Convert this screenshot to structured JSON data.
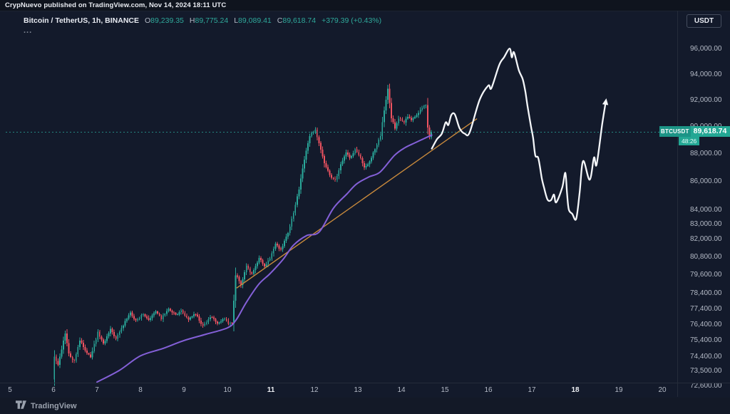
{
  "attribution": {
    "text": "CrypNuevo published on TradingView.com, Nov 14, 2024 18:11 UTC"
  },
  "legend": {
    "symbol": "Bitcoin / TetherUS, 1h, BINANCE",
    "ohlc": [
      {
        "key": "O",
        "value": "89,239.35"
      },
      {
        "key": "H",
        "value": "89,775.24"
      },
      {
        "key": "L",
        "value": "89,089.41"
      },
      {
        "key": "C",
        "value": "89,618.74"
      }
    ],
    "change": "+379.39 (+0.43%)",
    "more": "..."
  },
  "currency_button": {
    "label": "USDT"
  },
  "price_label": {
    "symbol_badge": "BTCUSDT",
    "price": "89,618.74",
    "countdown": "48:26"
  },
  "footer": {
    "brand": "TradingView"
  },
  "colors": {
    "background": "#131a2b",
    "up": "#2aa99b",
    "down": "#ef5360",
    "ma": "#8460d8",
    "trendline": "#c98a3c",
    "projection": "#f4f6f9",
    "current_price_line": "#2aa99b",
    "label_bg": "#23a794",
    "axis_text": "#b4bac6"
  },
  "chart_data": {
    "type": "candlestick",
    "symbol": "BTCUSDT",
    "description": "Bitcoin / TetherUS",
    "timeframe": "1h",
    "exchange": "BINANCE",
    "scale": "log",
    "last_candle": {
      "open": 89239.35,
      "high": 89775.24,
      "low": 89089.41,
      "close": 89618.74,
      "change": 379.39,
      "change_pct": 0.43
    },
    "current_price": 89618.74,
    "countdown": "48:26",
    "x_axis": {
      "unit": "day of month (Nov 2024)",
      "ticks": [
        "5",
        "6",
        "7",
        "8",
        "9",
        "10",
        "11",
        "12",
        "13",
        "14",
        "15",
        "16",
        "17",
        "18",
        "19",
        "20"
      ],
      "bold_ticks": [
        "11",
        "18"
      ]
    },
    "y_axis": {
      "visible_range": [
        72100,
        96900
      ],
      "ticks": [
        {
          "price": 96000,
          "label": "96,000.00"
        },
        {
          "price": 94000,
          "label": "94,000.00"
        },
        {
          "price": 92000,
          "label": "92,000.00"
        },
        {
          "price": 90000,
          "label": "90,000.00"
        },
        {
          "price": 88000,
          "label": "88,000.00"
        },
        {
          "price": 86000,
          "label": "86,000.00"
        },
        {
          "price": 84000,
          "label": "84,000.00"
        },
        {
          "price": 83000,
          "label": "83,000.00"
        },
        {
          "price": 82000,
          "label": "82,000.00"
        },
        {
          "price": 80800,
          "label": "80,800.00"
        },
        {
          "price": 79600,
          "label": "79,600.00"
        },
        {
          "price": 78400,
          "label": "78,400.00"
        },
        {
          "price": 77400,
          "label": "77,400.00"
        },
        {
          "price": 76400,
          "label": "76,400.00"
        },
        {
          "price": 75400,
          "label": "75,400.00"
        },
        {
          "price": 74400,
          "label": "74,400.00"
        },
        {
          "price": 73500,
          "label": "73,500.00"
        },
        {
          "price": 72600,
          "label": "72,600.00"
        }
      ]
    },
    "candles": {
      "start_day": 6.0,
      "end_day": 14.7083,
      "per_day": 24,
      "close_path": [
        [
          6.0,
          73000
        ],
        [
          6.04,
          74400
        ],
        [
          6.13,
          73900
        ],
        [
          6.29,
          75900
        ],
        [
          6.38,
          74500
        ],
        [
          6.5,
          74100
        ],
        [
          6.63,
          75500
        ],
        [
          6.75,
          74800
        ],
        [
          6.88,
          74400
        ],
        [
          7.04,
          75900
        ],
        [
          7.17,
          75200
        ],
        [
          7.33,
          76100
        ],
        [
          7.46,
          75500
        ],
        [
          7.63,
          76400
        ],
        [
          7.79,
          77200
        ],
        [
          7.92,
          76600
        ],
        [
          8.08,
          77100
        ],
        [
          8.21,
          76700
        ],
        [
          8.38,
          77300
        ],
        [
          8.5,
          76800
        ],
        [
          8.67,
          77400
        ],
        [
          8.83,
          77000
        ],
        [
          8.96,
          77300
        ],
        [
          9.13,
          76700
        ],
        [
          9.29,
          77100
        ],
        [
          9.46,
          76300
        ],
        [
          9.63,
          76900
        ],
        [
          9.79,
          76500
        ],
        [
          9.96,
          76800
        ],
        [
          10.04,
          76400
        ],
        [
          10.13,
          76500
        ],
        [
          10.21,
          79700
        ],
        [
          10.33,
          78900
        ],
        [
          10.46,
          80200
        ],
        [
          10.58,
          79700
        ],
        [
          10.75,
          80700
        ],
        [
          10.88,
          80200
        ],
        [
          11.0,
          80700
        ],
        [
          11.13,
          81700
        ],
        [
          11.25,
          81300
        ],
        [
          11.42,
          82500
        ],
        [
          11.54,
          83800
        ],
        [
          11.67,
          85500
        ],
        [
          11.79,
          87600
        ],
        [
          11.92,
          89400
        ],
        [
          12.04,
          89800
        ],
        [
          12.13,
          88700
        ],
        [
          12.25,
          87400
        ],
        [
          12.38,
          86400
        ],
        [
          12.5,
          86100
        ],
        [
          12.63,
          87300
        ],
        [
          12.75,
          88200
        ],
        [
          12.83,
          87700
        ],
        [
          12.96,
          88300
        ],
        [
          13.08,
          87700
        ],
        [
          13.17,
          87000
        ],
        [
          13.29,
          87400
        ],
        [
          13.42,
          88400
        ],
        [
          13.54,
          89300
        ],
        [
          13.63,
          91400
        ],
        [
          13.71,
          93000
        ],
        [
          13.79,
          90700
        ],
        [
          13.88,
          89900
        ],
        [
          13.96,
          90700
        ],
        [
          14.08,
          90300
        ],
        [
          14.17,
          90800
        ],
        [
          14.25,
          90500
        ],
        [
          14.33,
          90800
        ],
        [
          14.42,
          91100
        ],
        [
          14.5,
          91500
        ],
        [
          14.58,
          91800
        ],
        [
          14.63,
          89800
        ],
        [
          14.67,
          89239
        ],
        [
          14.7083,
          89618.74
        ]
      ]
    },
    "overlays": {
      "ma_purple": {
        "name": "moving-average",
        "points": [
          [
            7.0,
            72850
          ],
          [
            7.51,
            73550
          ],
          [
            8.0,
            74450
          ],
          [
            8.51,
            74900
          ],
          [
            9.0,
            75400
          ],
          [
            9.51,
            75800
          ],
          [
            10.0,
            76200
          ],
          [
            10.2,
            76700
          ],
          [
            10.43,
            77800
          ],
          [
            10.72,
            79000
          ],
          [
            10.98,
            79700
          ],
          [
            11.28,
            80650
          ],
          [
            11.52,
            81600
          ],
          [
            11.82,
            82250
          ],
          [
            12.11,
            82500
          ],
          [
            12.44,
            84150
          ],
          [
            12.75,
            85150
          ],
          [
            12.97,
            85850
          ],
          [
            13.25,
            86350
          ],
          [
            13.51,
            86700
          ],
          [
            13.84,
            87900
          ],
          [
            14.07,
            88450
          ],
          [
            14.33,
            88850
          ],
          [
            14.56,
            89200
          ],
          [
            14.7,
            89400
          ]
        ]
      },
      "trendline_orange": {
        "name": "ascending-trendline",
        "points": [
          [
            10.21,
            78750
          ],
          [
            15.74,
            90620
          ]
        ]
      },
      "projection_white": {
        "name": "hand-drawn-price-projection",
        "arrow": true,
        "points": [
          [
            14.7,
            88400
          ],
          [
            14.82,
            89100
          ],
          [
            14.93,
            89500
          ],
          [
            15.02,
            90350
          ],
          [
            15.08,
            90150
          ],
          [
            15.15,
            90900
          ],
          [
            15.23,
            90950
          ],
          [
            15.34,
            89900
          ],
          [
            15.46,
            89500
          ],
          [
            15.57,
            89600
          ],
          [
            15.8,
            92050
          ],
          [
            16.0,
            93150
          ],
          [
            16.07,
            92950
          ],
          [
            16.25,
            94750
          ],
          [
            16.36,
            95350
          ],
          [
            16.49,
            96050
          ],
          [
            16.54,
            95350
          ],
          [
            16.59,
            95750
          ],
          [
            16.7,
            94350
          ],
          [
            16.79,
            93650
          ],
          [
            16.85,
            92700
          ],
          [
            16.9,
            91600
          ],
          [
            16.98,
            90050
          ],
          [
            17.03,
            89200
          ],
          [
            17.08,
            87900
          ],
          [
            17.15,
            87700
          ],
          [
            17.23,
            86250
          ],
          [
            17.28,
            85600
          ],
          [
            17.36,
            84750
          ],
          [
            17.44,
            84700
          ],
          [
            17.51,
            85100
          ],
          [
            17.56,
            84550
          ],
          [
            17.7,
            85600
          ],
          [
            17.77,
            86650
          ],
          [
            17.81,
            85200
          ],
          [
            17.85,
            84050
          ],
          [
            17.93,
            83750
          ],
          [
            18.02,
            83400
          ],
          [
            18.1,
            85250
          ],
          [
            18.18,
            87500
          ],
          [
            18.33,
            86150
          ],
          [
            18.43,
            87750
          ],
          [
            18.49,
            87250
          ],
          [
            18.62,
            90250
          ],
          [
            18.7,
            91900
          ]
        ]
      }
    }
  }
}
